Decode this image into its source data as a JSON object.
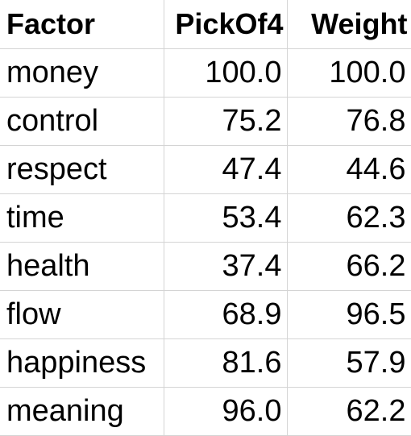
{
  "table": {
    "headers": [
      "Factor",
      "PickOf4",
      "Weight"
    ],
    "rows": [
      [
        "money",
        "100.0",
        "100.0"
      ],
      [
        "control",
        "75.2",
        "76.8"
      ],
      [
        "respect",
        "47.4",
        "44.6"
      ],
      [
        "time",
        "53.4",
        "62.3"
      ],
      [
        "health",
        "37.4",
        "66.2"
      ],
      [
        "flow",
        "68.9",
        "96.5"
      ],
      [
        "happiness",
        "81.6",
        "57.9"
      ],
      [
        "meaning",
        "96.0",
        "62.2"
      ]
    ]
  }
}
